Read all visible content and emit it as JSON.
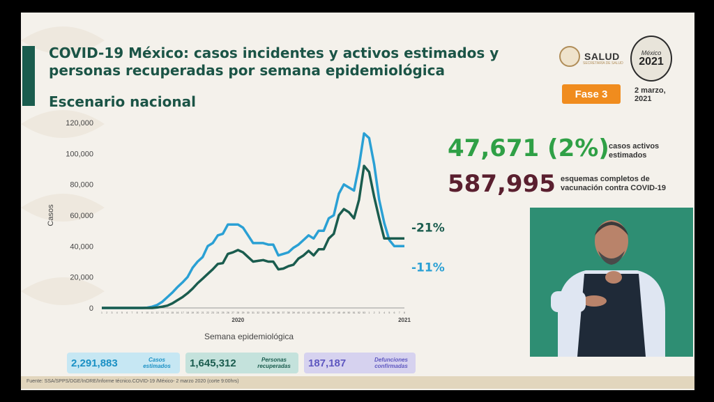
{
  "slide": {
    "title": "COVID-19 México: casos incidentes y activos estimados y personas recuperadas por semana epidemiológica",
    "subtitle": "Escenario nacional",
    "logo_text": "SALUD",
    "logo_sub": "SECRETARÍA DE SALUD",
    "logo2_top": "México",
    "logo2_year": "2021",
    "phase": "Fase 3",
    "date": "2 marzo, 2021",
    "footer": "Fuente: SSA/SPPS/DGE/InDRE/Informe técnico.COVID-19 /México- 2 marzo 2020 (corte 9:00hrs)"
  },
  "stats": {
    "active_value": "47,671 (2%)",
    "active_label": "casos activos estimados",
    "vaccine_value": "587,995",
    "vaccine_label": "esquemas completos de vacunación contra COVID-19"
  },
  "pills": [
    {
      "value": "2,291,883",
      "label": "Casos estimados"
    },
    {
      "value": "1,645,312",
      "label": "Personas recuperadas"
    },
    {
      "value": "187,187",
      "label": "Defunciones confirmadas"
    }
  ],
  "colors": {
    "blue": "#2aa0d4",
    "teal": "#1a5c4e",
    "green": "#2fa046",
    "maroon": "#5a1f2f",
    "orange": "#f08c1e"
  },
  "chart_data": {
    "type": "line",
    "title": "",
    "xlabel": "Semana epidemiológica",
    "ylabel": "Casos",
    "ylim": [
      0,
      120000
    ],
    "yticks": [
      0,
      20000,
      40000,
      60000,
      80000,
      100000,
      120000
    ],
    "ytick_labels": [
      "0",
      "20,000",
      "40,000",
      "60,000",
      "80,000",
      "100,000",
      "120,000"
    ],
    "year_labels": [
      {
        "label": "2020",
        "week_index": 27
      },
      {
        "label": "2021",
        "week_index": 60
      }
    ],
    "x": [
      1,
      2,
      3,
      4,
      5,
      6,
      7,
      8,
      9,
      10,
      11,
      12,
      13,
      14,
      15,
      16,
      17,
      18,
      19,
      20,
      21,
      22,
      23,
      24,
      25,
      26,
      27,
      28,
      29,
      30,
      31,
      32,
      33,
      34,
      35,
      36,
      37,
      38,
      39,
      40,
      41,
      42,
      43,
      44,
      45,
      46,
      47,
      48,
      49,
      50,
      51,
      52,
      53,
      1,
      2,
      3,
      4,
      5,
      6,
      7,
      8
    ],
    "x_tick_labels": [
      "1",
      "2",
      "3",
      "4",
      "5",
      "6",
      "7",
      "8",
      "9",
      "10",
      "11",
      "12",
      "13",
      "14",
      "15",
      "16",
      "17",
      "18",
      "19",
      "20",
      "21",
      "22",
      "23",
      "24",
      "25",
      "26",
      "27",
      "28",
      "29",
      "30",
      "31",
      "32",
      "33",
      "34",
      "35",
      "36",
      "37",
      "38",
      "39",
      "40",
      "41",
      "42",
      "43",
      "44",
      "45",
      "46",
      "47",
      "48",
      "49",
      "50",
      "51",
      "52",
      "53",
      "1",
      "2",
      "3",
      "4",
      "5",
      "6",
      "7",
      "8"
    ],
    "series": [
      {
        "values": [
          0,
          0,
          0,
          0,
          0,
          0,
          0,
          0,
          0,
          200,
          800,
          2000,
          4000,
          7000,
          10000,
          13500,
          16500,
          20000,
          26000,
          30000,
          33000,
          40000,
          42000,
          47000,
          48000,
          54000,
          54000,
          54000,
          52000,
          47000,
          42000,
          42000,
          42000,
          41000,
          41000,
          34000,
          35000,
          36000,
          39000,
          41000,
          44000,
          47000,
          45000,
          50000,
          50000,
          58000,
          60000,
          74000,
          80000,
          78000,
          76000,
          92000,
          113000,
          110000,
          93000,
          70000,
          55000,
          44000,
          40000,
          40000,
          40000
        ],
        "color": "#2aa0d4",
        "change": "-11%"
      },
      {
        "values": [
          0,
          0,
          0,
          0,
          0,
          0,
          0,
          0,
          0,
          0,
          0,
          300,
          800,
          1500,
          3000,
          5000,
          7000,
          9500,
          12500,
          16000,
          19000,
          22000,
          25000,
          28500,
          29000,
          35000,
          36000,
          37500,
          36000,
          33000,
          30000,
          30500,
          31000,
          30000,
          30000,
          25000,
          25500,
          27000,
          28000,
          32000,
          34000,
          37000,
          34000,
          38000,
          38000,
          45000,
          48000,
          60000,
          64000,
          62000,
          58000,
          70000,
          92000,
          88000,
          72000,
          58000,
          45000,
          45000,
          45000,
          45000,
          45000
        ],
        "color": "#1a5c4e",
        "change": "-21%"
      }
    ]
  }
}
